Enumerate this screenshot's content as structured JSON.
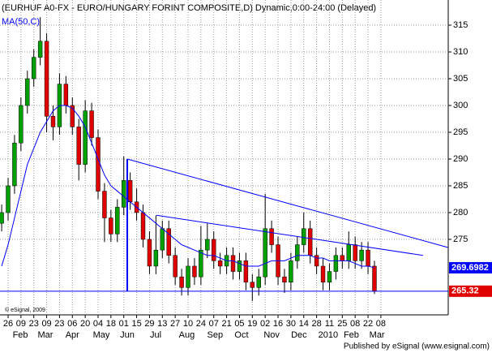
{
  "chart_data": {
    "type": "candlestick",
    "title": "(EURHUF A0-FX - EURO/HUNGARY FORINT COMPOSITE,D) Dynamic,0:00-24:00 (Delayed)",
    "copyright": "© eSignal, 2009",
    "footer": "Published by eSignal (www.esignal.com)",
    "up_color": "#00a000",
    "down_color": "#e00000",
    "x": [
      -5,
      0,
      5,
      10,
      15,
      20,
      25,
      30,
      35,
      40,
      45,
      50,
      55,
      60,
      65,
      70,
      75,
      80,
      85,
      90,
      95,
      100,
      105,
      110,
      115,
      120,
      125,
      130,
      135,
      140,
      145,
      150,
      155,
      160,
      165,
      170,
      175,
      180,
      185,
      190,
      195,
      200,
      205,
      210,
      215,
      220,
      225,
      230,
      235,
      240,
      245,
      250,
      255,
      260,
      265,
      270,
      275,
      280,
      285
    ],
    "open": [
      278,
      280,
      285,
      293,
      300,
      305,
      309,
      312,
      298,
      296,
      304,
      300,
      296,
      289,
      299,
      294,
      284,
      279,
      276,
      281,
      286,
      282,
      280,
      275,
      270,
      273,
      277,
      272,
      268,
      266,
      270,
      268,
      273,
      275,
      271,
      270,
      272,
      269,
      271,
      267,
      266,
      268,
      277,
      274,
      268,
      267,
      271,
      274,
      277,
      272,
      270,
      267,
      269,
      272,
      271,
      274,
      271,
      273,
      270
    ],
    "high": [
      281.5,
      286.5,
      294.5,
      301.5,
      306.5,
      310.5,
      316.5,
      313.5,
      300,
      306,
      305.5,
      301.5,
      297.5,
      301,
      300.5,
      295.5,
      285.5,
      280.5,
      282.5,
      290.5,
      287.5,
      284.5,
      281.5,
      276.5,
      279.5,
      278.5,
      278.5,
      273.5,
      269.5,
      271.5,
      271.5,
      277.5,
      278,
      276.5,
      272.5,
      273.5,
      273.5,
      272.5,
      272.5,
      268.5,
      269.5,
      283.5,
      278.5,
      275.5,
      269.5,
      272.5,
      275.5,
      280,
      278.5,
      273.5,
      271.5,
      270.5,
      273.5,
      273.5,
      276.5,
      275.5,
      274.5,
      274.5,
      271
    ],
    "low": [
      276.5,
      278.5,
      283.5,
      291.5,
      298.5,
      303.5,
      307.5,
      295,
      293.5,
      294.5,
      298.5,
      294.5,
      286,
      287.5,
      292.5,
      282.5,
      274.5,
      274.5,
      274.5,
      279.5,
      280.5,
      278.5,
      273.5,
      268.5,
      268.5,
      271.5,
      270.5,
      266.5,
      264.5,
      264.5,
      266.5,
      266.5,
      271.5,
      269.5,
      268.5,
      268.5,
      267.5,
      267.5,
      265.5,
      263.5,
      264.5,
      266.5,
      272.5,
      266.5,
      265,
      265.5,
      269.5,
      272.5,
      270.5,
      268.5,
      265.5,
      265.5,
      267.5,
      269.5,
      269.5,
      269.5,
      269.5,
      268.5,
      264.8
    ],
    "close": [
      280,
      285,
      293,
      300,
      305,
      309,
      312,
      298,
      296,
      304,
      300,
      296,
      289,
      299,
      294,
      284,
      279,
      276,
      281,
      286,
      282,
      280,
      275,
      270,
      273,
      277,
      272,
      268,
      266,
      270,
      268,
      273,
      275,
      271,
      270,
      272,
      269,
      271,
      267,
      266,
      268,
      277,
      274,
      268,
      267,
      271,
      274,
      277,
      272,
      270,
      267,
      269,
      272,
      271,
      274,
      271,
      273,
      270,
      265.32
    ],
    "series": [
      {
        "name": "MA(50,C)",
        "color": "#0000ff",
        "values": [
          270,
          274,
          279,
          284,
          289,
          292,
          295,
          297,
          299,
          300,
          300,
          299.5,
          298,
          296,
          293,
          290,
          287,
          285,
          284,
          283,
          282,
          281,
          280,
          279,
          278,
          277,
          276,
          275,
          274,
          273.5,
          273,
          272.5,
          272,
          272,
          271.5,
          271,
          271,
          270.5,
          270,
          270,
          270,
          270.5,
          271,
          271,
          271,
          271.5,
          272,
          272,
          272,
          271.5,
          271.5,
          271,
          271,
          271,
          271,
          270.5,
          270,
          270,
          269.6982
        ]
      }
    ],
    "lines": [
      {
        "x": [
          92.7,
          342
        ],
        "y": [
          290,
          273.5
        ]
      },
      {
        "x": [
          115.4,
          322.8
        ],
        "y": [
          279.5,
          272
        ]
      },
      {
        "x": [
          92.7,
          92.7
        ],
        "y": [
          290,
          265.32
        ]
      },
      {
        "x": [
          -6.3,
          342.4
        ],
        "y": [
          265.32,
          265.32
        ]
      }
    ],
    "line_color": "#0000ff",
    "xlim": [
      -6.3,
      342.4
    ],
    "ylim": [
      260.9,
      319.7
    ],
    "yticks": [
      275,
      280,
      285,
      290,
      295,
      300,
      305,
      310,
      315
    ],
    "xticks": [
      {
        "value": 0,
        "label": "26"
      },
      {
        "value": 10,
        "label": "09"
      },
      {
        "value": 20,
        "label": "23"
      },
      {
        "value": 30,
        "label": "09"
      },
      {
        "value": 40,
        "label": "23"
      },
      {
        "value": 50,
        "label": "06"
      },
      {
        "value": 60,
        "label": "20"
      },
      {
        "value": 70,
        "label": "04"
      },
      {
        "value": 80,
        "label": "18"
      },
      {
        "value": 90,
        "label": "01"
      },
      {
        "value": 100,
        "label": "15"
      },
      {
        "value": 110,
        "label": "29"
      },
      {
        "value": 120,
        "label": "13"
      },
      {
        "value": 130,
        "label": "27"
      },
      {
        "value": 140,
        "label": "10"
      },
      {
        "value": 150,
        "label": "24"
      },
      {
        "value": 160,
        "label": "07"
      },
      {
        "value": 170,
        "label": "21"
      },
      {
        "value": 180,
        "label": "05"
      },
      {
        "value": 190,
        "label": "19"
      },
      {
        "value": 200,
        "label": "02"
      },
      {
        "value": 210,
        "label": "16"
      },
      {
        "value": 220,
        "label": "30"
      },
      {
        "value": 230,
        "label": "14"
      },
      {
        "value": 240,
        "label": "28"
      },
      {
        "value": 250,
        "label": "11"
      },
      {
        "value": 260,
        "label": "25"
      },
      {
        "value": 270,
        "label": "08"
      },
      {
        "value": 280,
        "label": "22"
      },
      {
        "value": 290,
        "label": "08"
      }
    ],
    "month_labels": [
      {
        "value": 9.5,
        "label": "Feb"
      },
      {
        "value": 29,
        "label": "Mar"
      },
      {
        "value": 50,
        "label": "Apr"
      },
      {
        "value": 72.5,
        "label": "May"
      },
      {
        "value": 92.7,
        "label": "Jun"
      },
      {
        "value": 114.8,
        "label": "Jul"
      },
      {
        "value": 139,
        "label": "Aug"
      },
      {
        "value": 161,
        "label": "Sep"
      },
      {
        "value": 181.6,
        "label": "Oct"
      },
      {
        "value": 205,
        "label": "Nov"
      },
      {
        "value": 226.3,
        "label": "Dec"
      },
      {
        "value": 249,
        "label": "2010"
      },
      {
        "value": 267,
        "label": "Feb"
      },
      {
        "value": 287,
        "label": "Mar"
      }
    ],
    "grid": true
  }
}
